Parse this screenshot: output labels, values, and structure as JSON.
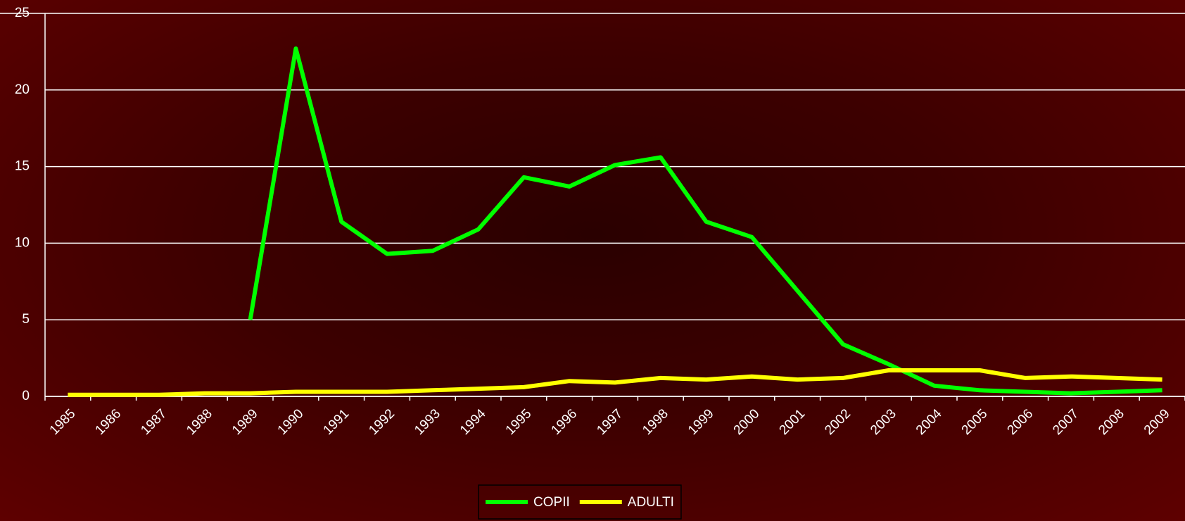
{
  "chart_data": {
    "type": "line",
    "categories": [
      "1985",
      "1986",
      "1987",
      "1988",
      "1989",
      "1990",
      "1991",
      "1992",
      "1993",
      "1994",
      "1995",
      "1996",
      "1997",
      "1998",
      "1999",
      "2000",
      "2001",
      "2002",
      "2003",
      "2004",
      "2005",
      "2006",
      "2007",
      "2008",
      "2009"
    ],
    "series": [
      {
        "name": "COPII",
        "color": "#00ff00",
        "values": [
          null,
          null,
          null,
          null,
          5,
          22.7,
          11.4,
          9.3,
          9.5,
          10.9,
          14.3,
          13.7,
          15.1,
          15.6,
          11.4,
          10.4,
          6.9,
          3.4,
          2.1,
          0.7,
          0.4,
          0.3,
          0.2,
          0.3,
          0.4
        ]
      },
      {
        "name": "ADULTI",
        "color": "#ffff00",
        "values": [
          0.1,
          0.1,
          0.1,
          0.2,
          0.2,
          0.3,
          0.3,
          0.3,
          0.4,
          0.5,
          0.6,
          1.0,
          0.9,
          1.2,
          1.1,
          1.3,
          1.1,
          1.2,
          1.7,
          1.7,
          1.7,
          1.2,
          1.3,
          1.2,
          1.1
        ]
      }
    ],
    "ylim": [
      0,
      25
    ],
    "yticks": [
      0,
      5,
      10,
      15,
      20,
      25
    ],
    "grid": true,
    "legend": "bottom"
  }
}
